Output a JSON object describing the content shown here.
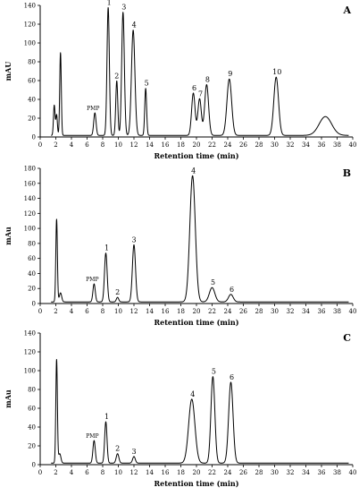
{
  "chart_data": [
    {
      "type": "line",
      "panel_label": "A",
      "xlabel": "Retention time (min)",
      "ylabel": "mAU",
      "xlim": [
        0,
        40
      ],
      "ylim": [
        0,
        140
      ],
      "x_ticks": [
        0,
        2,
        4,
        6,
        8,
        10,
        12,
        14,
        16,
        18,
        20,
        22,
        24,
        26,
        28,
        30,
        32,
        34,
        36,
        38,
        40
      ],
      "x_tick_labels": [
        "0",
        "2",
        "4",
        "6",
        "8",
        "10",
        "12",
        "14",
        "16",
        "18",
        "20",
        "22",
        "24",
        "26",
        "28",
        "30",
        "32",
        "34",
        "36",
        "38",
        "40"
      ],
      "y_ticks": [
        0,
        20,
        40,
        60,
        80,
        100,
        120,
        140
      ],
      "y_tick_labels": [
        "0",
        "20",
        "40",
        "60",
        "80",
        "100",
        "120",
        "140"
      ],
      "peaks": [
        {
          "label": "",
          "x": 1.8,
          "y": 32,
          "w": 0.1
        },
        {
          "label": "",
          "x": 2.1,
          "y": 22,
          "w": 0.1
        },
        {
          "label": "",
          "x": 2.6,
          "y": 88,
          "w": 0.1
        },
        {
          "label": "PMP",
          "x": 7.0,
          "y": 24,
          "w": 0.15
        },
        {
          "label": "1",
          "x": 8.7,
          "y": 136,
          "w": 0.15
        },
        {
          "label": "2",
          "x": 9.8,
          "y": 58,
          "w": 0.13
        },
        {
          "label": "3",
          "x": 10.6,
          "y": 131,
          "w": 0.17
        },
        {
          "label": "4",
          "x": 11.9,
          "y": 112,
          "w": 0.22
        },
        {
          "label": "5",
          "x": 13.5,
          "y": 50,
          "w": 0.12
        },
        {
          "label": "6",
          "x": 19.6,
          "y": 45,
          "w": 0.22
        },
        {
          "label": "7",
          "x": 20.4,
          "y": 39,
          "w": 0.22
        },
        {
          "label": "8",
          "x": 21.3,
          "y": 54,
          "w": 0.25
        },
        {
          "label": "9",
          "x": 24.2,
          "y": 60,
          "w": 0.3
        },
        {
          "label": "10",
          "x": 30.2,
          "y": 62,
          "w": 0.3
        },
        {
          "label": "",
          "x": 36.5,
          "y": 20,
          "w": 0.8
        }
      ]
    },
    {
      "type": "line",
      "panel_label": "B",
      "xlabel": "Retention time (min)",
      "ylabel": "mAu",
      "xlim": [
        0,
        40
      ],
      "ylim": [
        0,
        180
      ],
      "x_ticks": [
        0,
        2,
        4,
        6,
        8,
        10,
        12,
        14,
        16,
        18,
        20,
        22,
        24,
        26,
        28,
        30,
        32,
        34,
        36,
        38,
        40
      ],
      "x_tick_labels": [
        "0",
        "2",
        "4",
        "6",
        "8",
        "10",
        "12",
        "14",
        "16",
        "18",
        "20",
        "22",
        "24",
        "26",
        "28",
        "30",
        "32",
        "34",
        "36",
        "38",
        "40"
      ],
      "y_ticks": [
        0,
        20,
        40,
        60,
        80,
        100,
        120,
        140,
        160,
        180
      ],
      "y_tick_labels": [
        "0",
        "20",
        "40",
        "60",
        "80",
        "100",
        "120",
        "140",
        "160",
        "180"
      ],
      "peaks": [
        {
          "label": "",
          "x": 2.1,
          "y": 110,
          "w": 0.1
        },
        {
          "label": "",
          "x": 2.6,
          "y": 12,
          "w": 0.15
        },
        {
          "label": "PMP",
          "x": 6.9,
          "y": 24,
          "w": 0.15
        },
        {
          "label": "1",
          "x": 8.4,
          "y": 65,
          "w": 0.17
        },
        {
          "label": "2",
          "x": 9.9,
          "y": 6,
          "w": 0.15
        },
        {
          "label": "3",
          "x": 12.0,
          "y": 76,
          "w": 0.2
        },
        {
          "label": "4",
          "x": 19.5,
          "y": 168,
          "w": 0.35
        },
        {
          "label": "5",
          "x": 22.0,
          "y": 19,
          "w": 0.35
        },
        {
          "label": "6",
          "x": 24.4,
          "y": 10,
          "w": 0.3
        }
      ]
    },
    {
      "type": "line",
      "panel_label": "C",
      "xlabel": "Retention time (min)",
      "ylabel": "mAu",
      "xlim": [
        0,
        40
      ],
      "ylim": [
        0,
        140
      ],
      "x_ticks": [
        0,
        2,
        4,
        6,
        8,
        10,
        12,
        14,
        16,
        18,
        20,
        22,
        24,
        26,
        28,
        30,
        32,
        34,
        36,
        38,
        40
      ],
      "x_tick_labels": [
        "0",
        "2",
        "4",
        "6",
        "8",
        "10",
        "12",
        "14",
        "16",
        "18",
        "20",
        "22",
        "24",
        "26",
        "28",
        "30",
        "32",
        "34",
        "36",
        "38",
        "40"
      ],
      "y_ticks": [
        0,
        20,
        40,
        60,
        80,
        100,
        120,
        140
      ],
      "y_tick_labels": [
        "0",
        "20",
        "40",
        "60",
        "80",
        "100",
        "120",
        "140"
      ],
      "peaks": [
        {
          "label": "",
          "x": 2.1,
          "y": 110,
          "w": 0.1
        },
        {
          "label": "",
          "x": 2.5,
          "y": 10,
          "w": 0.15
        },
        {
          "label": "PMP",
          "x": 6.9,
          "y": 24,
          "w": 0.15
        },
        {
          "label": "1",
          "x": 8.4,
          "y": 44,
          "w": 0.15
        },
        {
          "label": "2",
          "x": 9.9,
          "y": 10,
          "w": 0.17
        },
        {
          "label": "3",
          "x": 12.0,
          "y": 7,
          "w": 0.17
        },
        {
          "label": "4",
          "x": 19.4,
          "y": 68,
          "w": 0.4
        },
        {
          "label": "5",
          "x": 22.1,
          "y": 92,
          "w": 0.25
        },
        {
          "label": "6",
          "x": 24.4,
          "y": 86,
          "w": 0.28
        }
      ]
    }
  ]
}
